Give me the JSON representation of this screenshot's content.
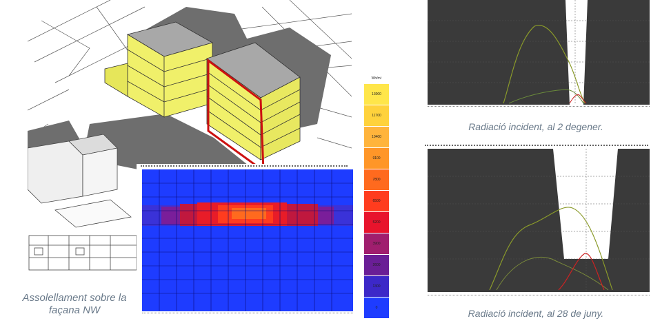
{
  "captions": {
    "left_line1": "Assolellament sobre la",
    "left_line2": "façana NW",
    "right_top": "Radiació incident, al 2 degener.",
    "right_bottom": "Radiació incident, al 28 de juny."
  },
  "legend": {
    "unit": "Wh/m²",
    "values": [
      "13000",
      "11700",
      "10400",
      "9100",
      "7800",
      "6500",
      "5200",
      "3900",
      "2600",
      "1300",
      "0"
    ],
    "colors": [
      "#ffe64a",
      "#ffd23c",
      "#ffb43c",
      "#ff9628",
      "#ff6a1e",
      "#ff3c1e",
      "#e8142c",
      "#a01e6e",
      "#6a1e96",
      "#3c28c8",
      "#1e3cff"
    ]
  },
  "colors": {
    "building_face": "#f0f06a",
    "building_roof": "#a8a8a8",
    "shadow": "#6e6e6e",
    "highlight": "#cc1111",
    "chart_bg": "#3a3a3a",
    "heatmap_bg": "#1e3cff"
  }
}
